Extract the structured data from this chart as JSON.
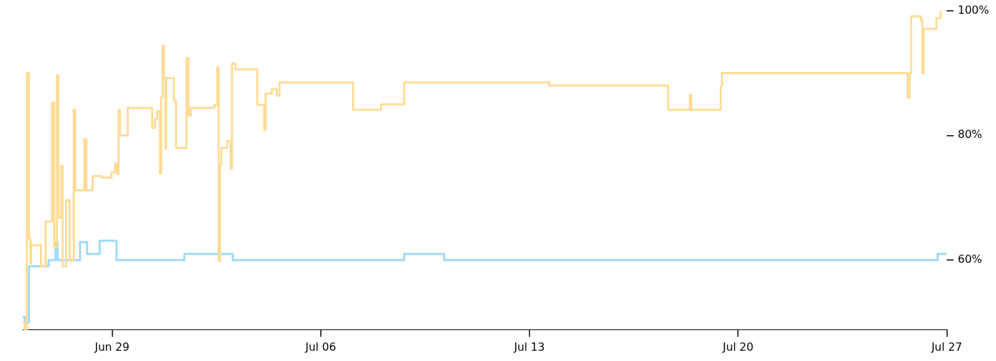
{
  "chart_data": {
    "type": "step",
    "marker": "none",
    "line_style": "solid",
    "grid": false,
    "xticks": [
      {
        "value": "--06-29",
        "label": "Jun 29"
      },
      {
        "value": "--07-06",
        "label": "Jul 06"
      },
      {
        "value": "--07-13",
        "label": "Jul 13"
      },
      {
        "value": "--07-20",
        "label": "Jul 20"
      },
      {
        "value": "--07-27",
        "label": "Jul 27"
      }
    ],
    "xlim": [
      "--06-26T00:00",
      "--07-27"
    ],
    "ylim": [
      48.8,
      100
    ],
    "yticks": [
      {
        "value": 60,
        "label": "60%"
      },
      {
        "value": 80,
        "label": "80%"
      },
      {
        "value": 100,
        "label": "100%"
      }
    ],
    "series": [
      {
        "color": "#fedc97",
        "x": [
          "--06-26T00:00",
          "--06-26T01:41",
          "--06-26T03:23",
          "--06-26T05:04",
          "--06-26T06:12",
          "--06-26T06:46",
          "--06-26T14:39",
          "--06-26T18:36",
          "--06-26T23:40",
          "--06-27T01:22",
          "--06-27T03:37",
          "--06-27T04:45",
          "--06-27T07:00",
          "--06-27T08:08",
          "--06-27T10:57",
          "--06-27T13:46",
          "--06-27T17:09",
          "--06-27T18:17",
          "--06-28T01:36",
          "--06-28T03:18",
          "--06-28T08:22",
          "--06-28T15:42",
          "--06-28T23:35",
          "--06-29T02:24",
          "--06-29T04:06",
          "--06-29T05:13",
          "--06-29T06:21",
          "--06-29T12:33",
          "--06-30T08:17",
          "--06-30T10:32",
          "--06-30T12:13",
          "--06-30T14:29",
          "--06-30T15:36",
          "--06-30T16:44",
          "--06-30T17:52",
          "--06-30T18:59",
          "--06-30T19:33",
          "--07-01T01:45",
          "--07-01T03:27",
          "--07-01T11:54",
          "--07-01T13:35",
          "--07-01T15:17",
          "--07-02T10:27",
          "--07-02T12:42",
          "--07-02T13:50",
          "--07-02T14:57",
          "--07-02T16:05",
          "--07-02T20:35",
          "--07-02T23:24",
          "--07-03T00:32",
          "--07-03T03:21",
          "--07-03T20:50",
          "--07-04T02:28",
          "--07-04T03:36",
          "--07-04T08:40",
          "--07-04T12:37",
          "--07-04T14:52",
          "--07-07T02:03",
          "--07-08T00:36",
          "--07-08T19:12",
          "--07-13T15:53",
          "--07-17T15:42",
          "--07-18T09:10",
          "--07-18T10:18",
          "--07-19T09:58",
          "--07-19T11:05",
          "--07-25T16:28",
          "--07-25T18:10",
          "--07-25T19:17",
          "--07-26T03:11",
          "--07-26T04:18",
          "--07-26T05:26",
          "--07-26T15:35",
          "--07-26T18:58",
          "--07-26T20:05"
        ],
        "values": [
          50,
          48.8,
          90,
          63.5,
          59.5,
          62.4,
          59,
          66.2,
          85.3,
          62,
          89.6,
          66.8,
          75.1,
          59,
          69.6,
          60,
          84.1,
          71.2,
          79.4,
          71.2,
          73.5,
          73.2,
          74.1,
          75.5,
          73.8,
          84.1,
          80,
          84.4,
          81.2,
          82.6,
          83.9,
          73.9,
          86.2,
          94.4,
          89.2,
          77.9,
          89.2,
          85.6,
          78,
          92.4,
          83.2,
          84.4,
          84.9,
          90.9,
          59.8,
          75.3,
          78,
          79.1,
          74.7,
          91.5,
          90.6,
          84.9,
          80.9,
          86.7,
          87.4,
          86.4,
          88.5,
          84.1,
          85,
          88.5,
          88,
          84.1,
          86.5,
          84.1,
          87.9,
          90,
          86.1,
          90,
          99.1,
          98.5,
          90,
          97.1,
          98.8,
          99.8,
          99.8
        ]
      },
      {
        "color": "#9dd9fb",
        "x": [
          "--06-26T00:00",
          "--06-26T01:41",
          "--06-26T05:04",
          "--06-26T20:51",
          "--06-27T02:30",
          "--06-27T04:11",
          "--06-27T19:24",
          "--06-27T22:13",
          "--06-28T03:51",
          "--06-28T14:00",
          "--06-29T03:32",
          "--07-01T10:12",
          "--07-03T01:06",
          "--07-08T19:12",
          "--07-10T03:19",
          "--07-26T16:42",
          "--07-27T00:00"
        ],
        "values": [
          50.9,
          50,
          59,
          60,
          62.9,
          60,
          60,
          62.9,
          61,
          63.1,
          60,
          61,
          60,
          61,
          60,
          61,
          61
        ]
      }
    ]
  }
}
